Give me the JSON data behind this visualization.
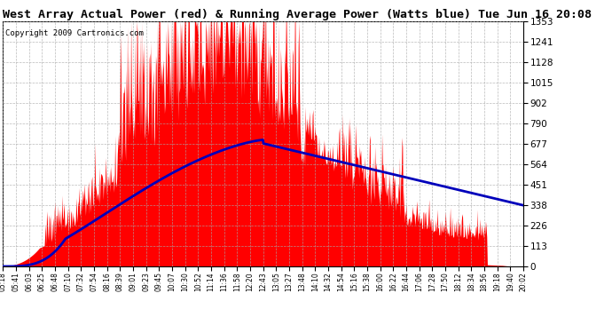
{
  "title": "West Array Actual Power (red) & Running Average Power (Watts blue) Tue Jun 16 20:08",
  "copyright": "Copyright 2009 Cartronics.com",
  "ymax": 1353.4,
  "yticks": [
    0.0,
    112.8,
    225.6,
    338.4,
    451.1,
    563.9,
    676.7,
    789.5,
    902.3,
    1015.1,
    1127.8,
    1240.6,
    1353.4
  ],
  "xtick_labels": [
    "05:18",
    "05:41",
    "06:03",
    "06:25",
    "06:48",
    "07:10",
    "07:32",
    "07:54",
    "08:16",
    "08:39",
    "09:01",
    "09:23",
    "09:45",
    "10:07",
    "10:30",
    "10:52",
    "11:14",
    "11:36",
    "11:58",
    "12:20",
    "12:43",
    "13:05",
    "13:27",
    "13:48",
    "14:10",
    "14:32",
    "14:54",
    "15:16",
    "15:38",
    "16:00",
    "16:22",
    "16:44",
    "17:06",
    "17:28",
    "17:50",
    "18:12",
    "18:34",
    "18:56",
    "19:18",
    "19:40",
    "20:02"
  ],
  "actual_color": "#ff0000",
  "avg_color": "#0000bb",
  "background_color": "#ffffff",
  "grid_color": "#aaaaaa",
  "title_fontsize": 9.5,
  "copyright_fontsize": 6.5
}
